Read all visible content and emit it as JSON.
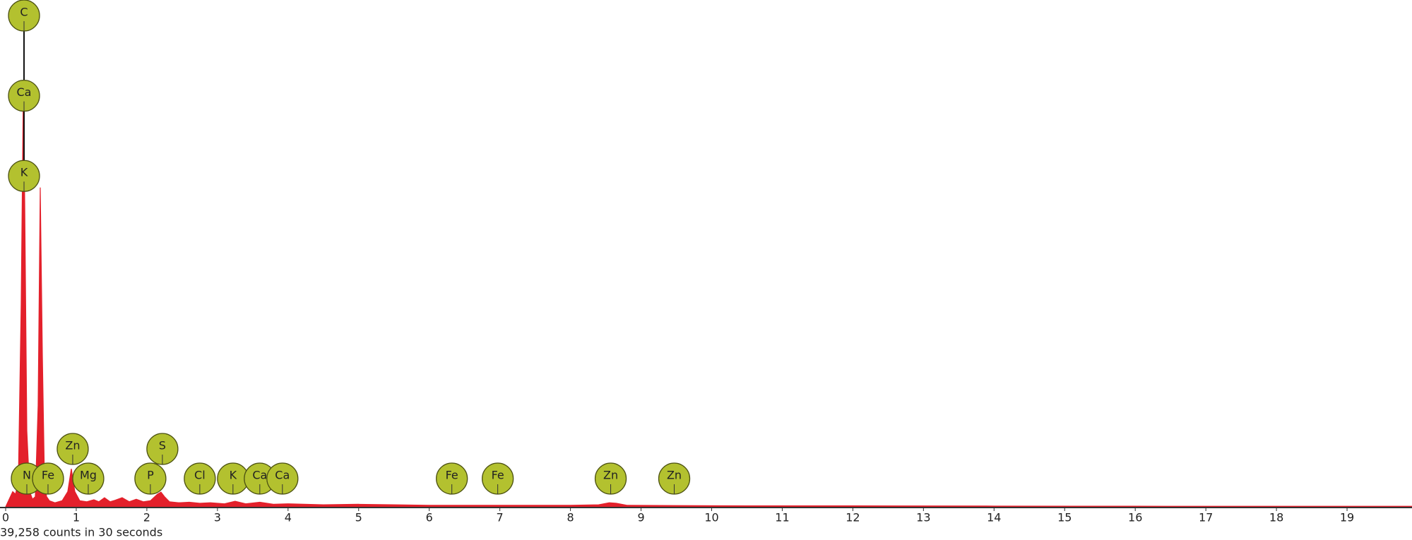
{
  "chart_data": {
    "type": "area",
    "x": [
      0,
      0.05,
      0.1,
      0.14,
      0.18,
      0.22,
      0.25,
      0.27,
      0.3,
      0.34,
      0.38,
      0.42,
      0.46,
      0.49,
      0.52,
      0.55,
      0.58,
      0.62,
      0.7,
      0.8,
      0.88,
      0.93,
      0.98,
      1.05,
      1.15,
      1.25,
      1.32,
      1.4,
      1.48,
      1.55,
      1.65,
      1.75,
      1.85,
      1.95,
      2.05,
      2.15,
      2.2,
      2.25,
      2.32,
      2.45,
      2.6,
      2.75,
      2.9,
      3.1,
      3.25,
      3.4,
      3.6,
      3.8,
      4.0,
      4.5,
      5.0,
      5.5,
      6.0,
      6.5,
      7.0,
      7.5,
      8.0,
      8.4,
      8.55,
      8.65,
      8.8,
      9.5,
      10.5,
      12,
      14,
      16,
      18,
      19.92
    ],
    "values": [
      0,
      1.5,
      3,
      2.5,
      5,
      40,
      82,
      60,
      15,
      3,
      1.5,
      2,
      20,
      63,
      30,
      5,
      2,
      1.2,
      0.8,
      1.2,
      3,
      7.5,
      3,
      1.2,
      1,
      1.4,
      1,
      1.8,
      1,
      1.3,
      1.8,
      1,
      1.5,
      1,
      1.2,
      2.5,
      2.9,
      2,
      1,
      0.8,
      0.9,
      0.7,
      0.8,
      0.6,
      1.1,
      0.6,
      0.9,
      0.5,
      0.6,
      0.4,
      0.5,
      0.4,
      0.3,
      0.3,
      0.3,
      0.3,
      0.3,
      0.4,
      0.8,
      0.7,
      0.3,
      0.25,
      0.2,
      0.2,
      0.15,
      0.12,
      0.1,
      0.1
    ],
    "color": "#e3202b",
    "xlim": [
      0,
      19.92
    ],
    "ylim": [
      0,
      100
    ],
    "xticks": [
      0,
      1,
      2,
      3,
      4,
      5,
      6,
      7,
      8,
      9,
      10,
      11,
      12,
      13,
      14,
      15,
      16,
      17,
      18,
      19
    ],
    "footer": "39,258 counts in 30 seconds",
    "marker_color": "#b3c12f",
    "marker_stacks": [
      {
        "x": 0.26,
        "labels": [
          "K",
          "Ca",
          "C"
        ]
      }
    ],
    "markers": [
      {
        "x": 0.3,
        "label": "N"
      },
      {
        "x": 0.6,
        "label": "Fe"
      },
      {
        "x": 1.17,
        "label": "Mg"
      },
      {
        "x": 0.95,
        "label": "Zn"
      },
      {
        "x": 2.05,
        "label": "P"
      },
      {
        "x": 2.22,
        "label": "S"
      },
      {
        "x": 2.75,
        "label": "Cl"
      },
      {
        "x": 3.22,
        "label": "K"
      },
      {
        "x": 3.6,
        "label": "Ca"
      },
      {
        "x": 3.92,
        "label": "Ca"
      },
      {
        "x": 6.32,
        "label": "Fe"
      },
      {
        "x": 6.97,
        "label": "Fe"
      },
      {
        "x": 8.57,
        "label": "Zn"
      },
      {
        "x": 9.47,
        "label": "Zn"
      }
    ]
  }
}
